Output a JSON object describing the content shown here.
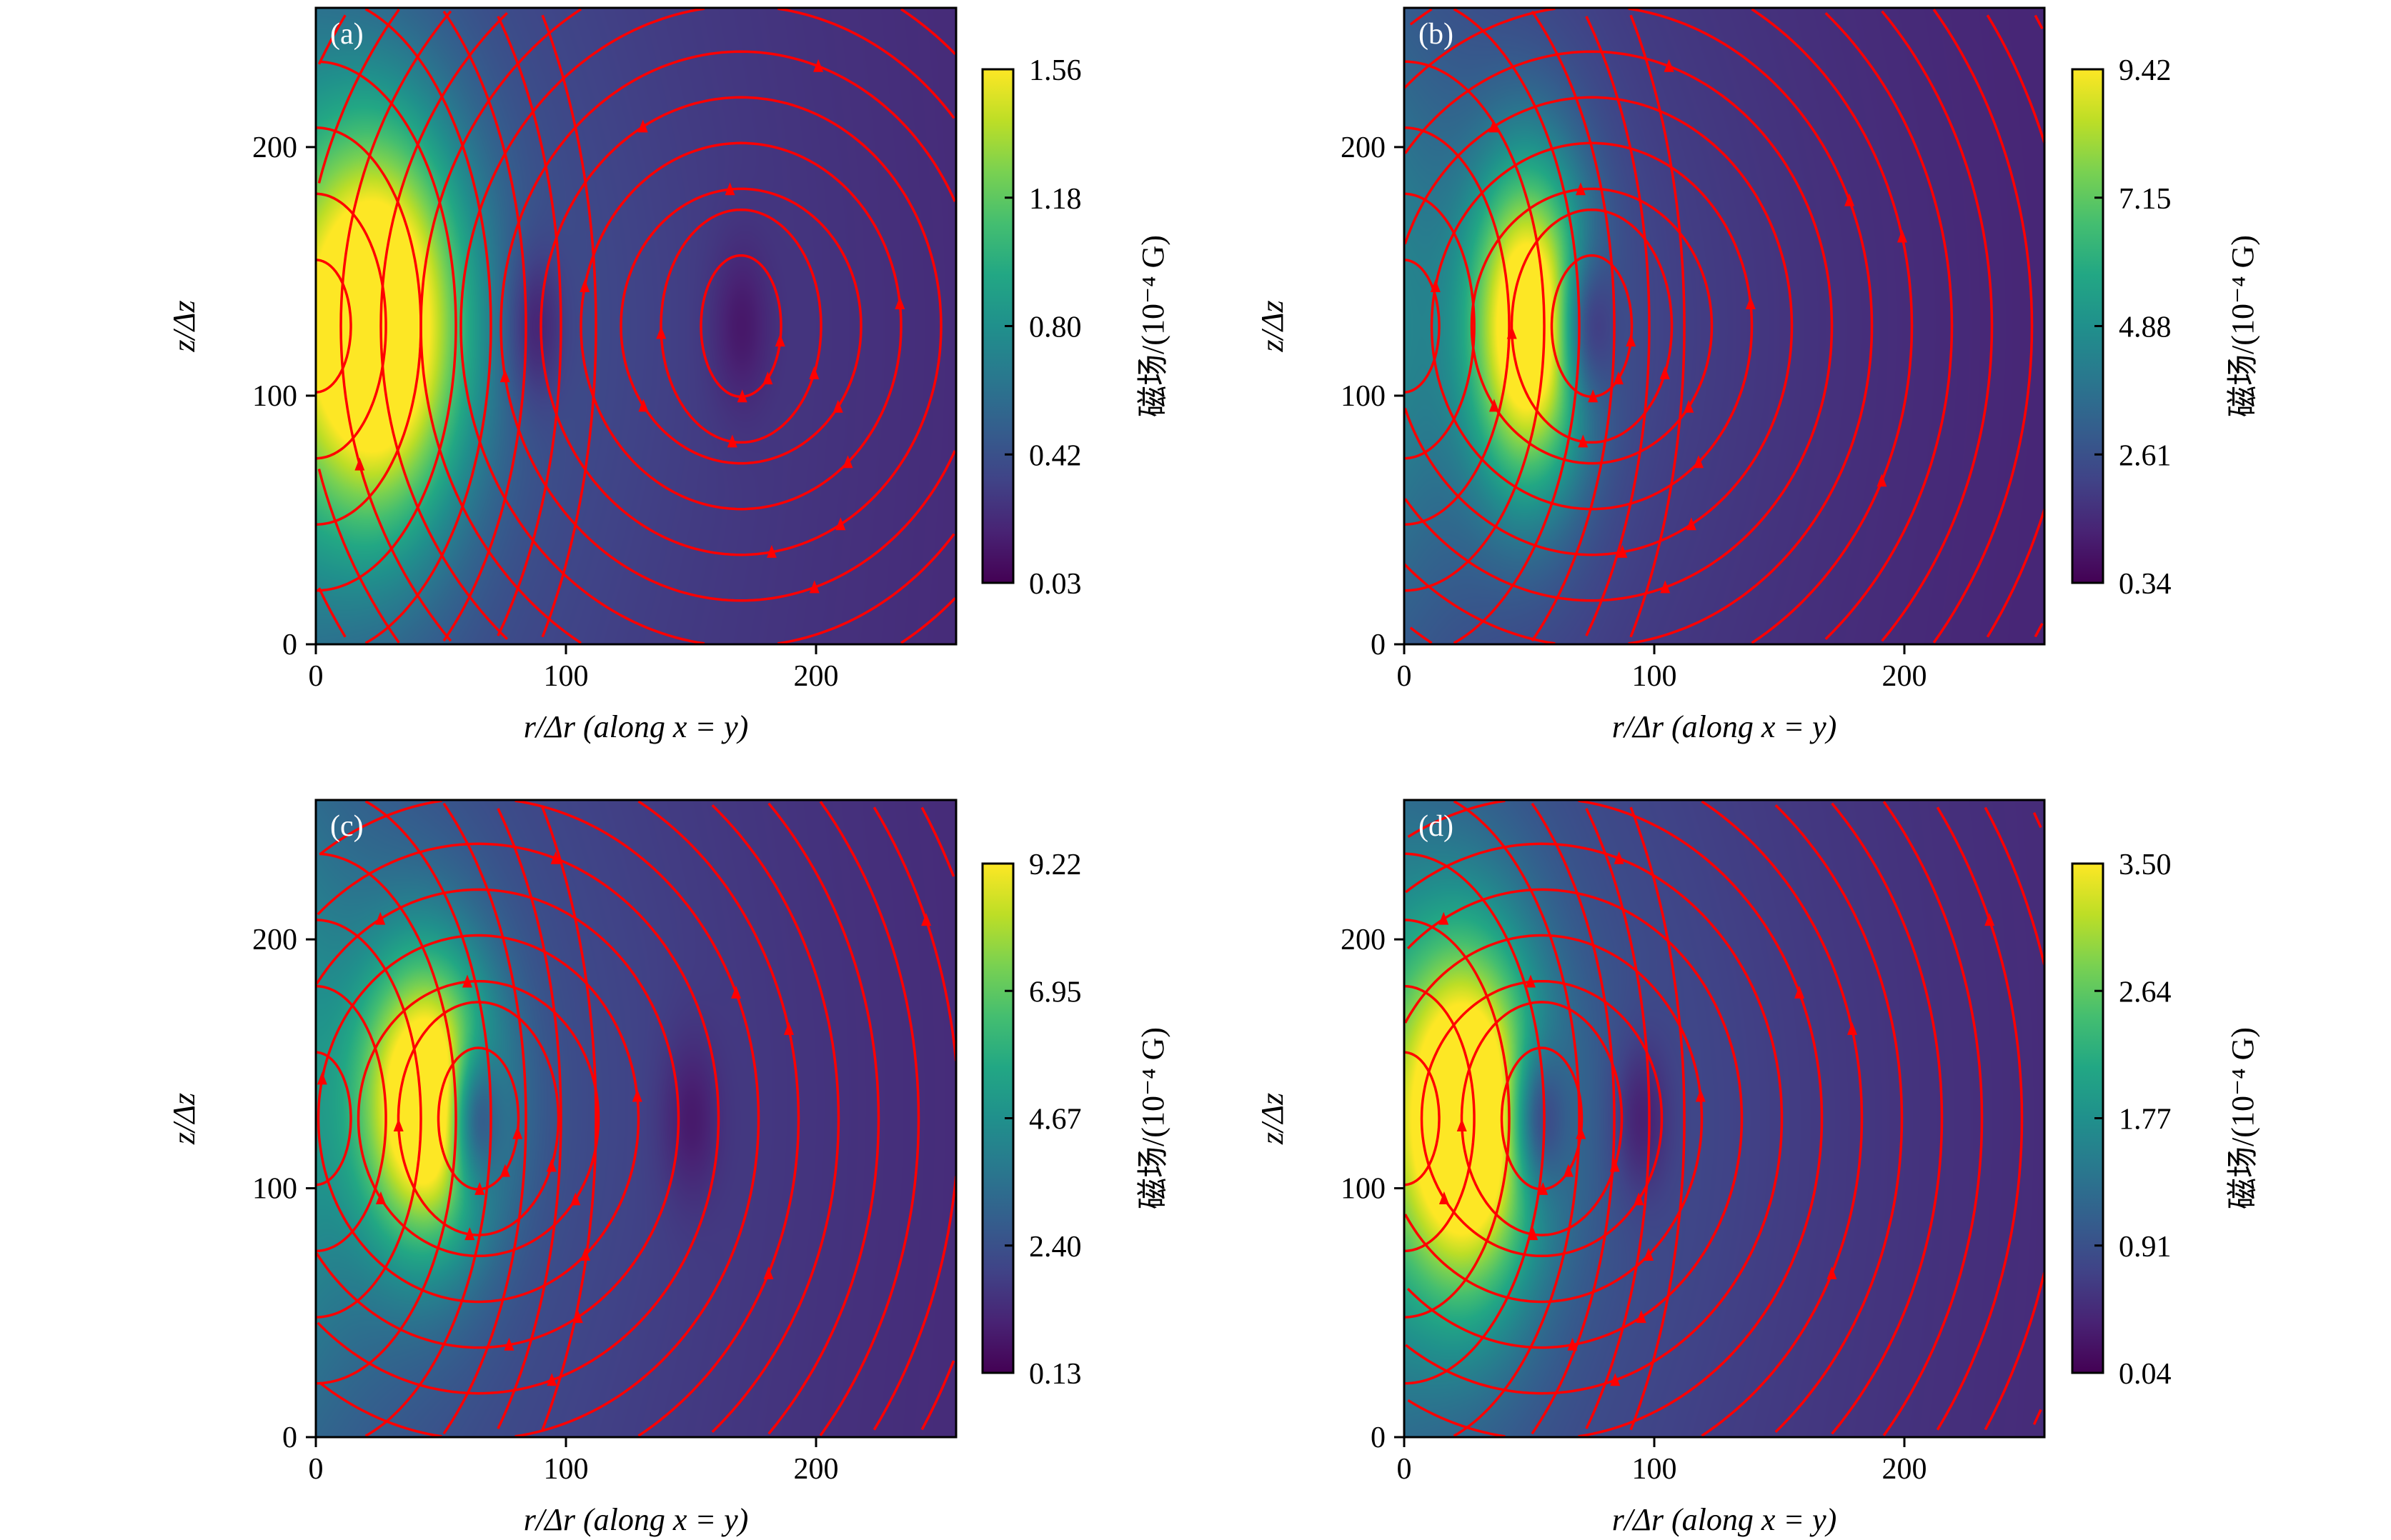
{
  "chart_data": [
    {
      "type": "heatmap",
      "panel_label": "(a)",
      "xlabel": "r/Δr (along x = y)",
      "ylabel": "z/Δz",
      "xlim": [
        0,
        256
      ],
      "ylim": [
        0,
        256
      ],
      "xticks": [
        "0",
        "100",
        "200"
      ],
      "yticks": [
        "0",
        "100",
        "200"
      ],
      "colorbar": {
        "label": "磁场/(10⁻⁴ G)",
        "range": [
          0.03,
          1.56
        ],
        "ticks": [
          "0.03",
          "0.42",
          "0.80",
          "1.18",
          "1.56"
        ],
        "colormap": "viridis"
      },
      "field": {
        "peak_r": 25,
        "peak_z": 128,
        "peak_width_r": 24,
        "peak_width_z": 55,
        "background": 0.2,
        "minima_r": [
          88,
          170
        ]
      },
      "streamlines": {
        "color": "#ff0000",
        "vortex_center": [
          170,
          128
        ]
      }
    },
    {
      "type": "heatmap",
      "panel_label": "(b)",
      "xlabel": "r/Δr (along x = y)",
      "ylabel": "z/Δz",
      "xlim": [
        0,
        256
      ],
      "ylim": [
        0,
        256
      ],
      "xticks": [
        "0",
        "100",
        "200"
      ],
      "yticks": [
        "0",
        "100",
        "200"
      ],
      "colorbar": {
        "label": "磁场/(10⁻⁴ G)",
        "range": [
          0.34,
          9.42
        ],
        "ticks": [
          "0.34",
          "2.61",
          "4.88",
          "7.15",
          "9.42"
        ],
        "colormap": "viridis"
      },
      "field": {
        "peak_r": 50,
        "peak_z": 128,
        "peak_width_r": 16,
        "peak_width_z": 45,
        "background": 0.15,
        "minima_r": [
          75
        ]
      },
      "streamlines": {
        "color": "#ff0000",
        "vortex_center": [
          75,
          128
        ]
      }
    },
    {
      "type": "heatmap",
      "panel_label": "(c)",
      "xlabel": "r/Δr (along x = y)",
      "ylabel": "z/Δz",
      "xlim": [
        0,
        256
      ],
      "ylim": [
        0,
        256
      ],
      "xticks": [
        "0",
        "100",
        "200"
      ],
      "yticks": [
        "0",
        "100",
        "200"
      ],
      "colorbar": {
        "label": "磁场/(10⁻⁴ G)",
        "range": [
          0.13,
          9.22
        ],
        "ticks": [
          "0.13",
          "2.40",
          "4.67",
          "6.95",
          "9.22"
        ],
        "colormap": "viridis"
      },
      "field": {
        "peak_r": 45,
        "peak_z": 135,
        "peak_width_r": 18,
        "peak_width_z": 40,
        "background": 0.2,
        "minima_r": [
          65,
          150
        ]
      },
      "streamlines": {
        "color": "#ff0000",
        "vortex_center": [
          65,
          128
        ]
      }
    },
    {
      "type": "heatmap",
      "panel_label": "(d)",
      "xlabel": "r/Δr (along x = y)",
      "ylabel": "z/Δz",
      "xlim": [
        0,
        256
      ],
      "ylim": [
        0,
        256
      ],
      "xticks": [
        "0",
        "100",
        "200"
      ],
      "yticks": [
        "0",
        "100",
        "200"
      ],
      "colorbar": {
        "label": "磁场/(10⁻⁴ G)",
        "range": [
          0.04,
          3.5
        ],
        "ticks": [
          "0.04",
          "0.91",
          "1.77",
          "2.64",
          "3.50"
        ],
        "colormap": "viridis"
      },
      "field": {
        "peak_r": 25,
        "peak_z": 128,
        "peak_width_r": 20,
        "peak_width_z": 50,
        "background": 0.2,
        "minima_r": [
          55,
          95
        ]
      },
      "streamlines": {
        "color": "#ff0000",
        "vortex_center": [
          55,
          128
        ]
      }
    }
  ]
}
